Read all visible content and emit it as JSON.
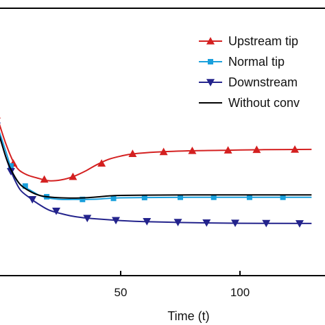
{
  "chart_data": {
    "type": "line",
    "xlabel": "Time (t)",
    "ylabel": "",
    "xlim": [
      -2,
      130
    ],
    "ylim": [
      0,
      1
    ],
    "x_ticks": [
      50,
      100
    ],
    "x_tick_labels": [
      "50",
      "100"
    ],
    "legend_position": "top-right",
    "grid": false,
    "series": [
      {
        "name": "Upstream tip",
        "color": "#d42020",
        "marker": "triangle-up",
        "line": [
          [
            -2,
            0.6
          ],
          [
            2,
            0.49
          ],
          [
            6,
            0.41
          ],
          [
            10,
            0.38
          ],
          [
            15,
            0.365
          ],
          [
            20,
            0.355
          ],
          [
            25,
            0.358
          ],
          [
            30,
            0.37
          ],
          [
            35,
            0.39
          ],
          [
            40,
            0.415
          ],
          [
            45,
            0.435
          ],
          [
            50,
            0.447
          ],
          [
            55,
            0.455
          ],
          [
            65,
            0.462
          ],
          [
            80,
            0.467
          ],
          [
            95,
            0.469
          ],
          [
            110,
            0.471
          ],
          [
            130,
            0.472
          ]
        ],
        "markers": [
          [
            -2,
            0.6
          ],
          [
            5,
            0.42
          ],
          [
            18,
            0.36
          ],
          [
            30,
            0.37
          ],
          [
            42,
            0.42
          ],
          [
            55,
            0.456
          ],
          [
            68,
            0.463
          ],
          [
            80,
            0.467
          ],
          [
            95,
            0.469
          ],
          [
            107,
            0.471
          ],
          [
            123,
            0.472
          ]
        ]
      },
      {
        "name": "Normal tip",
        "color": "#1aa0dc",
        "marker": "square",
        "line": [
          [
            -2,
            0.57
          ],
          [
            2,
            0.46
          ],
          [
            5,
            0.38
          ],
          [
            8,
            0.34
          ],
          [
            12,
            0.32
          ],
          [
            16,
            0.3
          ],
          [
            20,
            0.29
          ],
          [
            25,
            0.285
          ],
          [
            30,
            0.285
          ],
          [
            35,
            0.285
          ],
          [
            40,
            0.286
          ],
          [
            45,
            0.289
          ],
          [
            50,
            0.291
          ],
          [
            60,
            0.292
          ],
          [
            80,
            0.293
          ],
          [
            100,
            0.293
          ],
          [
            130,
            0.293
          ]
        ],
        "markers": [
          [
            -2,
            0.57
          ],
          [
            4,
            0.41
          ],
          [
            10,
            0.335
          ],
          [
            19,
            0.295
          ],
          [
            34,
            0.285
          ],
          [
            47,
            0.289
          ],
          [
            60,
            0.292
          ],
          [
            75,
            0.293
          ],
          [
            89,
            0.293
          ],
          [
            104,
            0.293
          ],
          [
            118,
            0.293
          ]
        ]
      },
      {
        "name": "Downstream",
        "color": "#23238c",
        "marker": "triangle-down",
        "line": [
          [
            -2,
            0.56
          ],
          [
            2,
            0.44
          ],
          [
            5,
            0.37
          ],
          [
            8,
            0.32
          ],
          [
            12,
            0.29
          ],
          [
            16,
            0.265
          ],
          [
            20,
            0.245
          ],
          [
            25,
            0.232
          ],
          [
            30,
            0.222
          ],
          [
            35,
            0.216
          ],
          [
            40,
            0.212
          ],
          [
            50,
            0.206
          ],
          [
            60,
            0.202
          ],
          [
            80,
            0.198
          ],
          [
            100,
            0.196
          ],
          [
            130,
            0.195
          ]
        ],
        "markers": [
          [
            -2,
            0.56
          ],
          [
            4,
            0.39
          ],
          [
            13,
            0.285
          ],
          [
            23,
            0.242
          ],
          [
            36,
            0.215
          ],
          [
            48,
            0.207
          ],
          [
            61,
            0.203
          ],
          [
            74,
            0.2
          ],
          [
            86,
            0.198
          ],
          [
            98,
            0.197
          ],
          [
            111,
            0.196
          ],
          [
            125,
            0.195
          ]
        ]
      },
      {
        "name": "Without conv",
        "color": "#000000",
        "marker": "none",
        "line": [
          [
            -2,
            0.56
          ],
          [
            2,
            0.44
          ],
          [
            5,
            0.38
          ],
          [
            8,
            0.34
          ],
          [
            12,
            0.315
          ],
          [
            16,
            0.3
          ],
          [
            20,
            0.294
          ],
          [
            25,
            0.291
          ],
          [
            30,
            0.29
          ],
          [
            35,
            0.291
          ],
          [
            40,
            0.294
          ],
          [
            45,
            0.298
          ],
          [
            50,
            0.3
          ],
          [
            60,
            0.301
          ],
          [
            80,
            0.302
          ],
          [
            100,
            0.302
          ],
          [
            130,
            0.302
          ]
        ],
        "markers": []
      }
    ]
  }
}
